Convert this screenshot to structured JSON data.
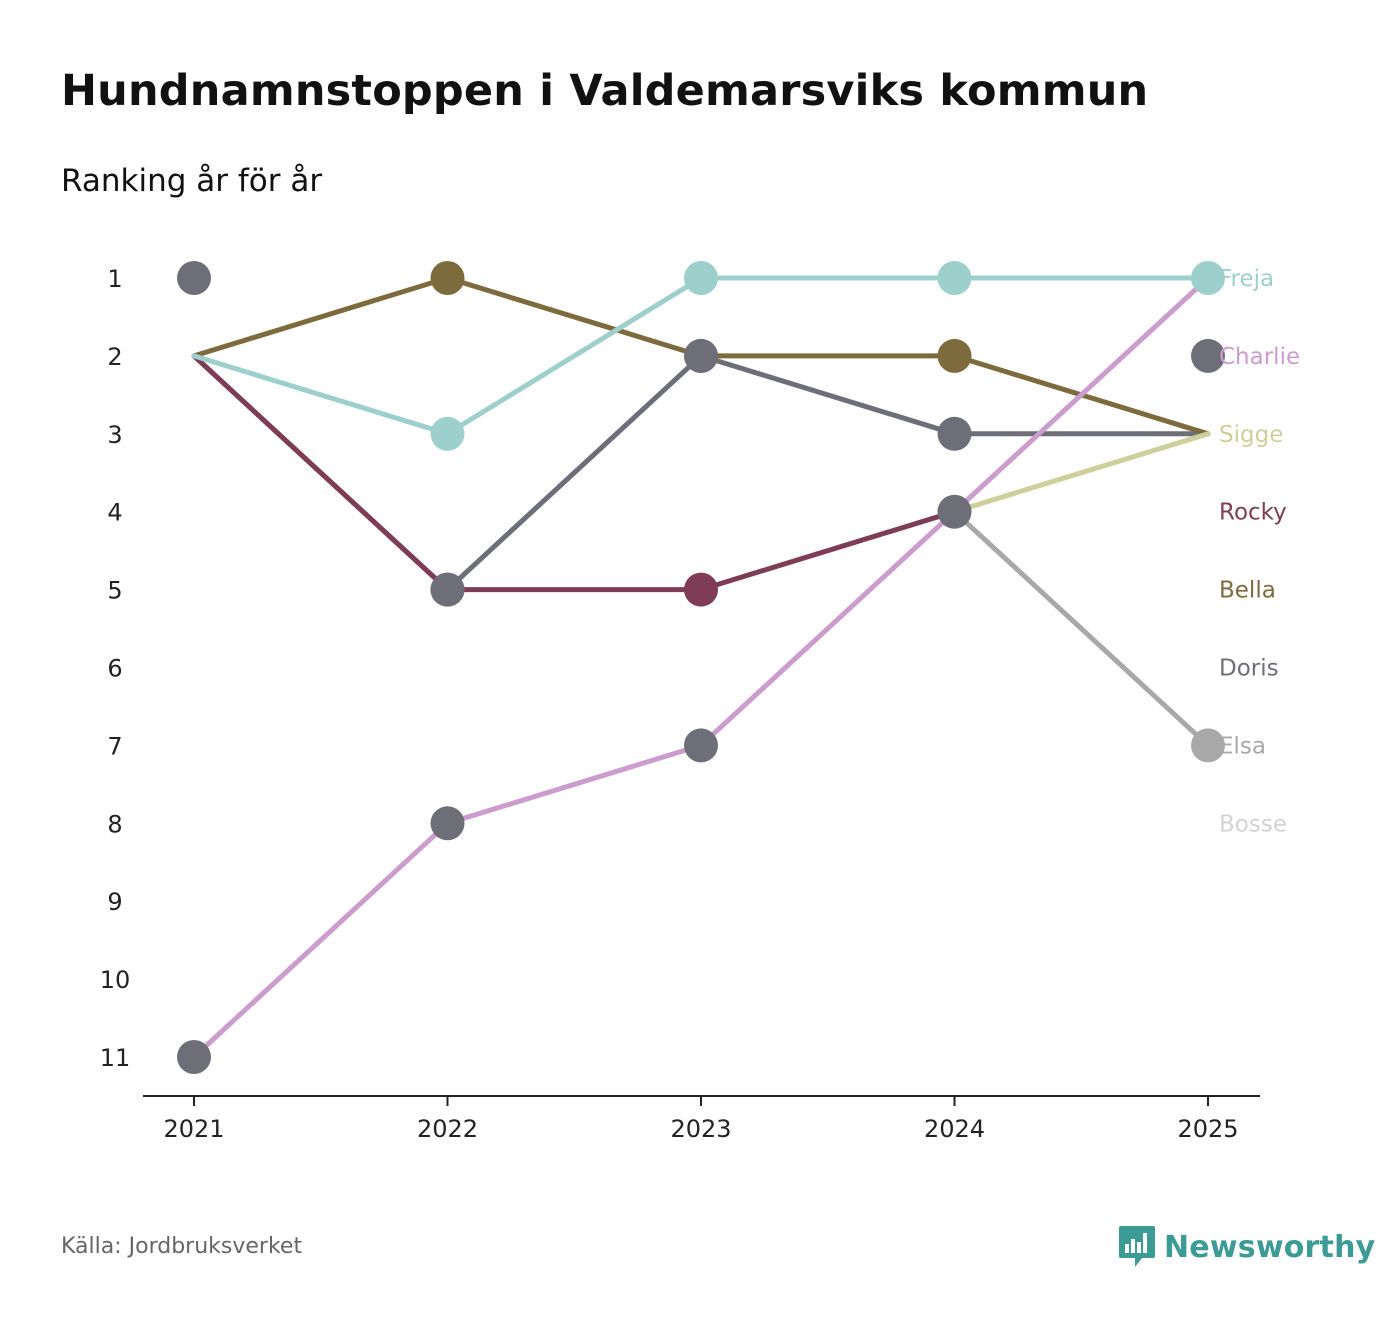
{
  "title": "Hundnamnstoppen i Valdemarsviks kommun",
  "subtitle": "Ranking år för år",
  "source": "Källa: Jordbruksverket",
  "brand": {
    "name": "Newsworthy",
    "icon": "newsworthy-logo-icon",
    "color": "#3d9b95"
  },
  "chart_data": {
    "type": "line",
    "subtype": "bump",
    "title": "Hundnamnstoppen i Valdemarsviks kommun",
    "subtitle": "Ranking år för år",
    "xlabel": "",
    "ylabel": "",
    "x": [
      "2021",
      "2022",
      "2023",
      "2024",
      "2025"
    ],
    "ylim": [
      11,
      1
    ],
    "y_reversed": true,
    "y_ticks": [
      "1",
      "2",
      "3",
      "4",
      "5",
      "6",
      "7",
      "8",
      "9",
      "10",
      "11"
    ],
    "grid": false,
    "legend": "direct labels at right end",
    "series": [
      {
        "name": "Bosse",
        "color": "#d3d3d3",
        "values": [
          null,
          null,
          null,
          null,
          null
        ]
      },
      {
        "name": "Elsa",
        "color": "#a8a8a8",
        "values": [
          null,
          null,
          null,
          4,
          7
        ]
      },
      {
        "name": "Doris",
        "color": "#6e6e78",
        "values": [
          2,
          5,
          2,
          3,
          3
        ]
      },
      {
        "name": "Bella",
        "color": "#7d6b3d",
        "values": [
          2,
          1,
          2,
          2,
          3
        ]
      },
      {
        "name": "Rocky",
        "color": "#7e3d55",
        "values": [
          2,
          5,
          5,
          4,
          null
        ]
      },
      {
        "name": "Sigge",
        "color": "#cdd09a",
        "values": [
          null,
          null,
          null,
          4,
          3
        ]
      },
      {
        "name": "Freja",
        "color": "#9dcfcc",
        "values": [
          2,
          3,
          1,
          1,
          1
        ]
      },
      {
        "name": "Charlie",
        "color": "#cc9ccf",
        "values": [
          11,
          8,
          7,
          4,
          1
        ]
      }
    ],
    "end_labels": [
      "Freja",
      "Charlie",
      "Sigge",
      "Rocky",
      "Bella",
      "Doris",
      "Elsa",
      "Bosse"
    ],
    "end_label_colors": [
      "#9dcfcc",
      "#cc9ccf",
      "#cdd09a",
      "#7e3d55",
      "#7d6b3d",
      "#6e6e78",
      "#a8a8a8",
      "#d3d3d3"
    ],
    "point_colors": [
      [
        "#6e6e78",
        "#7d6b3d",
        "#9dcfcc",
        "#9dcfcc",
        "#9dcfcc"
      ],
      [
        null,
        "#9dcfcc",
        "#7d6b3d",
        "#7d6b3d",
        "#6e6e78"
      ],
      [
        null,
        "#7e3d55",
        "#6e6e78",
        "#6e6e78",
        null
      ],
      [
        null,
        "#6e6e78",
        "#7e3d55",
        "#6e6e78",
        null
      ],
      [
        null,
        "#6e6e78",
        "#6e6e78",
        null,
        "#a8a8a8"
      ],
      [
        "#6e6e78",
        null,
        null,
        null,
        null
      ]
    ]
  }
}
